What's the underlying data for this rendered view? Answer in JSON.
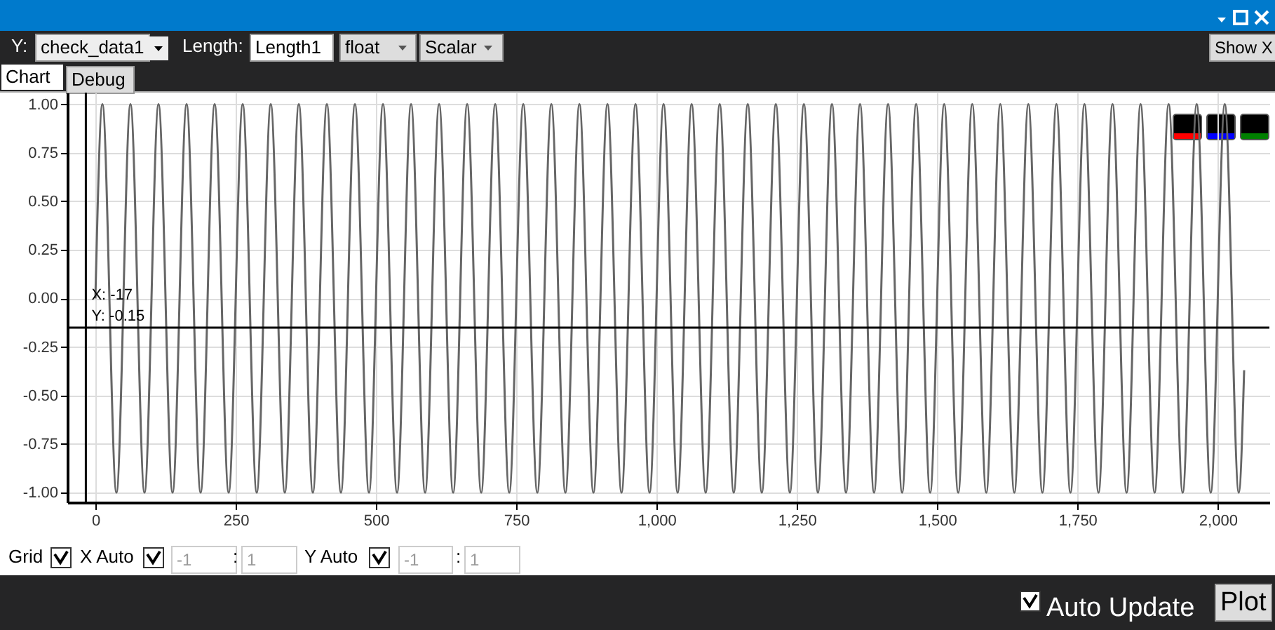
{
  "chart_data": {
    "type": "line",
    "x": [
      0,
      12.5,
      37.5,
      62.5,
      87.5,
      112.5,
      137.5,
      162.5,
      187.5,
      212.5,
      237.5,
      262.5,
      287.5,
      312.5,
      337.5,
      362.5,
      387.5,
      412.5,
      437.5,
      462.5,
      487.5,
      512.5,
      537.5,
      562.5,
      587.5,
      612.5,
      637.5,
      662.5,
      687.5,
      712.5,
      737.5,
      762.5,
      787.5,
      812.5,
      837.5,
      862.5,
      887.5,
      912.5,
      937.5,
      962.5,
      987.5,
      1012.5,
      1037.5,
      1062.5,
      1087.5,
      1112.5,
      1137.5,
      1162.5,
      1187.5,
      1212.5,
      1237.5,
      1262.5,
      1287.5,
      1312.5,
      1337.5,
      1362.5,
      1387.5,
      1412.5,
      1437.5,
      1462.5,
      1487.5,
      1512.5,
      1537.5,
      1562.5,
      1587.5,
      1612.5,
      1637.5,
      1662.5,
      1687.5,
      1712.5,
      1737.5,
      1762.5,
      1787.5,
      1812.5,
      1837.5,
      1862.5,
      1887.5,
      1912.5,
      1937.5,
      1962.5,
      1987.5,
      2012.5,
      2037.5,
      2047
    ],
    "series": [
      {
        "color": "#666666",
        "values": [
          0,
          1,
          -1,
          1,
          -1,
          1,
          -1,
          1,
          -1,
          1,
          -1,
          1,
          -1,
          1,
          -1,
          1,
          -1,
          1,
          -1,
          1,
          -1,
          1,
          -1,
          1,
          -1,
          1,
          -1,
          1,
          -1,
          1,
          -1,
          1,
          -1,
          1,
          -1,
          1,
          -1,
          1,
          -1,
          1,
          -1,
          1,
          -1,
          1,
          -1,
          1,
          -1,
          1,
          -1,
          1,
          -1,
          1,
          -1,
          1,
          -1,
          1,
          -1,
          1,
          -1,
          1,
          -1,
          1,
          -1,
          1,
          -1,
          1,
          -1,
          1,
          -1,
          1,
          -1,
          1,
          -1,
          1,
          -1,
          1,
          -1,
          1,
          -1,
          1,
          -1,
          1,
          -1,
          -0.37
        ]
      }
    ],
    "xlim": [
      -50,
      2092
    ],
    "ylim": [
      -1.05,
      1.06
    ],
    "xticks": [
      0,
      250,
      500,
      750,
      {
        "value": 1000,
        "label": "1,000"
      },
      {
        "value": 1250,
        "label": "1,250"
      },
      {
        "value": 1500,
        "label": "1,500"
      },
      {
        "value": 1750,
        "label": "1,750"
      },
      {
        "value": 2000,
        "label": "2,000"
      }
    ],
    "yticks": [
      {
        "value": -1,
        "label": "-1.00"
      },
      {
        "value": -0.75,
        "label": "-0.75"
      },
      {
        "value": -0.5,
        "label": "-0.50"
      },
      {
        "value": -0.25,
        "label": "-0.25"
      },
      {
        "value": 0,
        "label": "0.00"
      },
      {
        "value": 0.25,
        "label": "0.25"
      },
      {
        "value": 0.5,
        "label": "0.50"
      },
      {
        "value": 0.75,
        "label": "0.75"
      },
      {
        "value": 1,
        "label": "1.00"
      }
    ],
    "grid": true,
    "marker": "none",
    "line_style": "solid",
    "ref_lines": [
      {
        "axis": "x",
        "value": -17,
        "label": "X: -17",
        "color": "#000000"
      },
      {
        "axis": "y",
        "value": -0.15,
        "label": "Y: -0.15",
        "color": "#000000"
      }
    ],
    "annotations": [
      "Y:",
      "check_data1",
      "Length:",
      "Length1",
      "float",
      "Scalar",
      "Show X",
      "Chart",
      "Debug",
      "Grid",
      "X Auto",
      "-1",
      ":",
      "1",
      "Y Auto",
      "-1",
      ":",
      "1",
      "Auto Update",
      "Plot"
    ]
  }
}
